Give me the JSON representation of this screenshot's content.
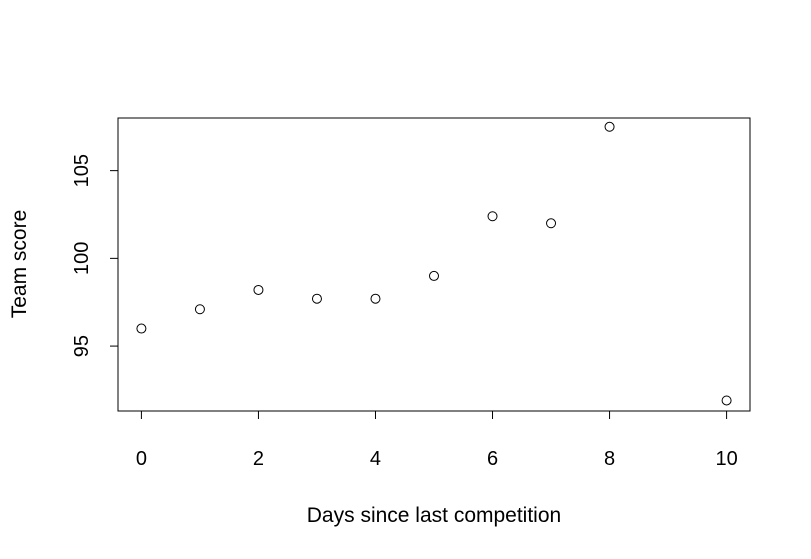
{
  "chart_data": {
    "type": "scatter",
    "title": "",
    "xlabel": "Days since last competition",
    "ylabel": "Team score",
    "xlim": [
      -0.4,
      10.4
    ],
    "ylim": [
      91.3,
      108.0
    ],
    "x_ticks": [
      0,
      2,
      4,
      6,
      8,
      10
    ],
    "y_ticks": [
      95,
      100,
      105
    ],
    "grid": false,
    "legend": "none",
    "marker": "open-circle",
    "points": [
      {
        "x": 0,
        "y": 96.0
      },
      {
        "x": 1,
        "y": 97.1
      },
      {
        "x": 2,
        "y": 98.2
      },
      {
        "x": 3,
        "y": 97.7
      },
      {
        "x": 4,
        "y": 97.7
      },
      {
        "x": 5,
        "y": 99.0
      },
      {
        "x": 6,
        "y": 102.4
      },
      {
        "x": 7,
        "y": 102.0
      },
      {
        "x": 8,
        "y": 107.5
      },
      {
        "x": 10,
        "y": 91.9
      }
    ]
  }
}
